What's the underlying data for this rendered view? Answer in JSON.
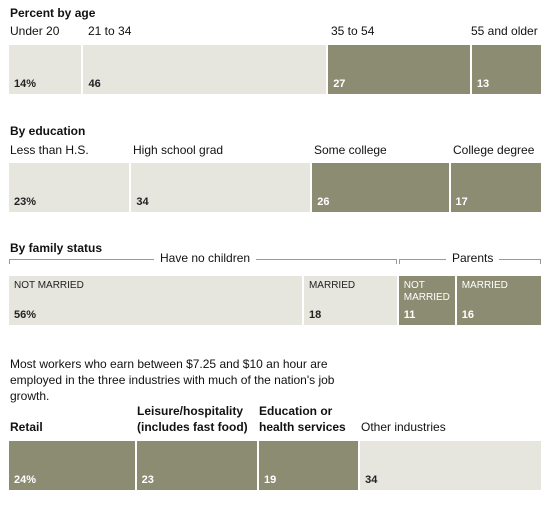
{
  "chart_data": [
    {
      "type": "bar",
      "title": "Percent by age",
      "categories": [
        "Under 20",
        "21 to 34",
        "35 to 54",
        "55 and older"
      ],
      "values": [
        14,
        46,
        27,
        13
      ],
      "value_labels": [
        "14%",
        "46",
        "27",
        "13"
      ],
      "colors": [
        "#e6e5de",
        "#e6e5de",
        "#8c8c73",
        "#8c8c73"
      ]
    },
    {
      "type": "bar",
      "title": "By education",
      "categories": [
        "Less than H.S.",
        "High school grad",
        "Some college",
        "College degree"
      ],
      "values": [
        23,
        34,
        26,
        17
      ],
      "value_labels": [
        "23%",
        "34",
        "26",
        "17"
      ],
      "colors": [
        "#e6e5de",
        "#e6e5de",
        "#8c8c73",
        "#8c8c73"
      ]
    },
    {
      "type": "bar",
      "title": "By family status",
      "groups": [
        {
          "name": "Have no children",
          "categories": [
            "NOT MARRIED",
            "MARRIED"
          ]
        },
        {
          "name": "Parents",
          "categories": [
            "NOT MARRIED",
            "MARRIED"
          ]
        }
      ],
      "categories": [
        "NOT MARRIED",
        "MARRIED",
        "NOT MARRIED",
        "MARRIED"
      ],
      "values": [
        56,
        18,
        11,
        16
      ],
      "value_labels": [
        "56%",
        "18",
        "11",
        "16"
      ],
      "colors": [
        "#e6e5de",
        "#e6e5de",
        "#8c8c73",
        "#8c8c73"
      ]
    },
    {
      "type": "bar",
      "title": "",
      "categories": [
        "Retail",
        "Leisure/hospitality (includes fast food)",
        "Education or health services",
        "Other industries"
      ],
      "values": [
        24,
        23,
        19,
        34
      ],
      "value_labels": [
        "24%",
        "23",
        "19",
        "34"
      ],
      "colors": [
        "#8c8c73",
        "#8c8c73",
        "#8c8c73",
        "#e6e5de"
      ]
    }
  ],
  "labels": {
    "age_title": "Percent by age",
    "age_cats": [
      "Under 20",
      "21 to 34",
      "35 to 54",
      "55 and older"
    ],
    "edu_title": "By education",
    "edu_cats": [
      "Less than H.S.",
      "High school grad",
      "Some college",
      "College degree"
    ],
    "family_title": "By family status",
    "family_group_no_children": "Have no children",
    "family_group_parents": "Parents",
    "family_inner": [
      "NOT MARRIED",
      "MARRIED",
      "NOT\nMARRIED",
      "MARRIED"
    ],
    "note": "Most workers who earn between $7.25 and $10 an hour are employed in the three industries with much of the nation's job growth.",
    "ind_retail": "Retail",
    "ind_leisure_1": "Leisure/hospitality",
    "ind_leisure_2": "(includes fast food)",
    "ind_edu_1": "Education or",
    "ind_edu_2": "health services",
    "ind_other": "Other industries"
  }
}
